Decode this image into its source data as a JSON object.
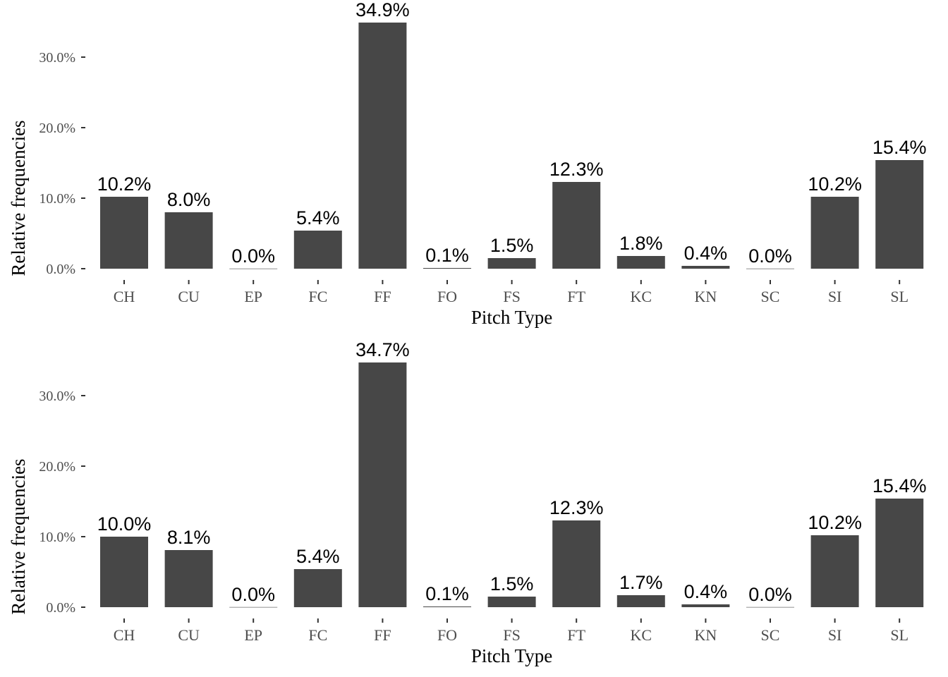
{
  "chart_data": [
    {
      "type": "bar",
      "xlabel": "Pitch Type",
      "ylabel": "Relative frequencies",
      "ylim": [
        0,
        0.349
      ],
      "yticks": [
        0,
        0.1,
        0.2,
        0.3
      ],
      "yticklabels": [
        "0.0%",
        "10.0%",
        "20.0%",
        "30.0%"
      ],
      "grid": false,
      "bar_color": "#474747",
      "categories": [
        "CH",
        "CU",
        "EP",
        "FC",
        "FF",
        "FO",
        "FS",
        "FT",
        "KC",
        "KN",
        "SC",
        "SI",
        "SL"
      ],
      "values": [
        0.102,
        0.08,
        0.0002,
        0.054,
        0.349,
        0.001,
        0.015,
        0.123,
        0.018,
        0.004,
        0.0002,
        0.102,
        0.154
      ],
      "labels": [
        "10.2%",
        "8.0%",
        "0.0%",
        "5.4%",
        "34.9%",
        "0.1%",
        "1.5%",
        "12.3%",
        "1.8%",
        "0.4%",
        "0.0%",
        "10.2%",
        "15.4%"
      ]
    },
    {
      "type": "bar",
      "xlabel": "Pitch Type",
      "ylabel": "Relative frequencies",
      "ylim": [
        0,
        0.347
      ],
      "yticks": [
        0,
        0.1,
        0.2,
        0.3
      ],
      "yticklabels": [
        "0.0%",
        "10.0%",
        "20.0%",
        "30.0%"
      ],
      "grid": false,
      "bar_color": "#474747",
      "categories": [
        "CH",
        "CU",
        "EP",
        "FC",
        "FF",
        "FO",
        "FS",
        "FT",
        "KC",
        "KN",
        "SC",
        "SI",
        "SL"
      ],
      "values": [
        0.1,
        0.081,
        0.0002,
        0.054,
        0.347,
        0.001,
        0.015,
        0.123,
        0.017,
        0.004,
        0.0002,
        0.102,
        0.154
      ],
      "labels": [
        "10.0%",
        "8.1%",
        "0.0%",
        "5.4%",
        "34.7%",
        "0.1%",
        "1.5%",
        "12.3%",
        "1.7%",
        "0.4%",
        "0.0%",
        "10.2%",
        "15.4%"
      ]
    }
  ]
}
